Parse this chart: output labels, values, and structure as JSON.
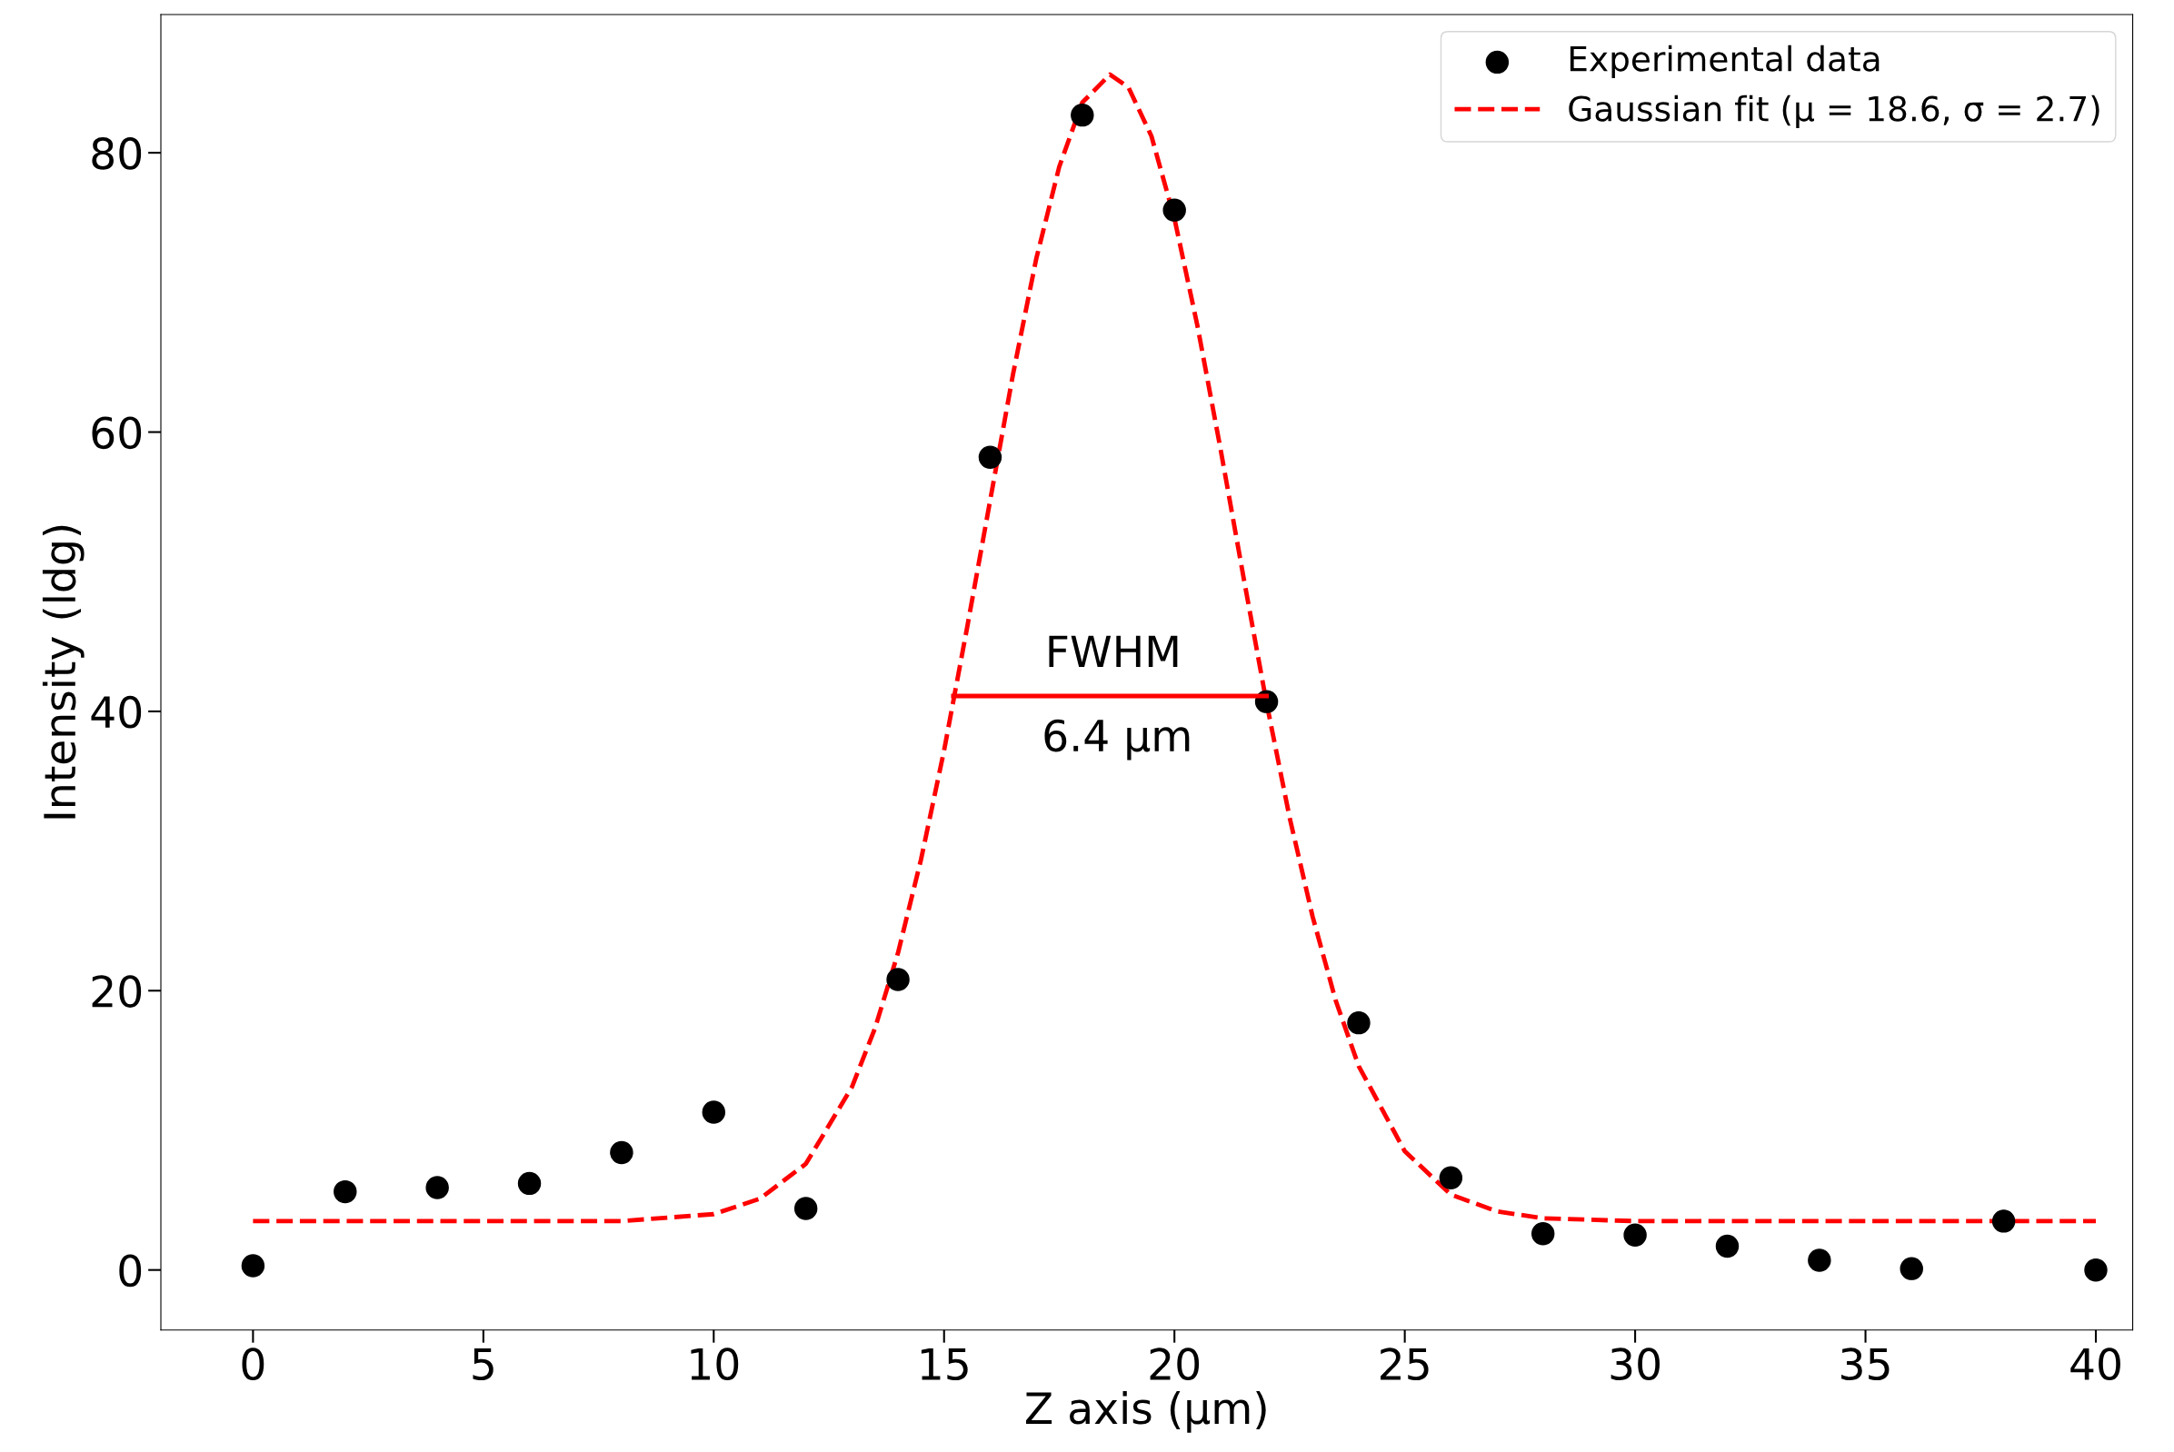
{
  "chart_data": {
    "type": "scatter",
    "xlabel": "Z axis (µm)",
    "ylabel": "Intensity (ldg)",
    "xlim": [
      -2,
      40.8
    ],
    "ylim": [
      -4.3,
      89.9
    ],
    "xticks": [
      0,
      5,
      10,
      15,
      20,
      25,
      30,
      35,
      40
    ],
    "yticks": [
      0,
      20,
      40,
      60,
      80
    ],
    "grid": false,
    "legend": "top right",
    "series": [
      {
        "name": "Experimental data",
        "marker": "circle",
        "color": "#000000",
        "x": [
          0,
          2,
          4,
          6,
          8,
          10,
          12,
          14,
          16,
          18,
          20,
          22,
          24,
          26,
          28,
          30,
          32,
          34,
          36,
          38,
          40
        ],
        "values": [
          0.3,
          5.6,
          5.9,
          6.2,
          8.4,
          11.3,
          4.4,
          20.8,
          58.2,
          82.7,
          75.9,
          40.7,
          17.7,
          6.6,
          2.6,
          2.5,
          1.7,
          0.7,
          0.1,
          3.5,
          0.0
        ]
      },
      {
        "name": "Gaussian fit (μ = 18.6, σ = 2.7)",
        "type": "line",
        "line_style": "dashed",
        "color": "#ff0000",
        "x": [
          0,
          5,
          8,
          10,
          11,
          12,
          13,
          13.5,
          14,
          14.5,
          15,
          15.5,
          16,
          16.5,
          17,
          17.5,
          18,
          18.6,
          19,
          19.5,
          20,
          20.5,
          21,
          21.5,
          22,
          22.5,
          23,
          23.5,
          24,
          25,
          26,
          27,
          28,
          30,
          40
        ],
        "values": [
          3.5,
          3.5,
          3.5,
          4.0,
          5.1,
          7.6,
          13.1,
          17.3,
          22.7,
          29.4,
          37.2,
          46.0,
          55.1,
          64.2,
          72.4,
          79.0,
          83.6,
          85.6,
          84.7,
          81.2,
          75.3,
          67.6,
          58.8,
          49.6,
          40.6,
          32.4,
          25.3,
          19.3,
          14.6,
          8.5,
          5.4,
          4.2,
          3.7,
          3.5,
          3.5
        ]
      },
      {
        "type": "line",
        "line_style": "solid",
        "color": "#ff0000",
        "x": [
          15.2,
          22.0
        ],
        "values": [
          41.1,
          41.1
        ]
      }
    ],
    "annotations": [
      "FWHM",
      "6.4 µm"
    ]
  }
}
